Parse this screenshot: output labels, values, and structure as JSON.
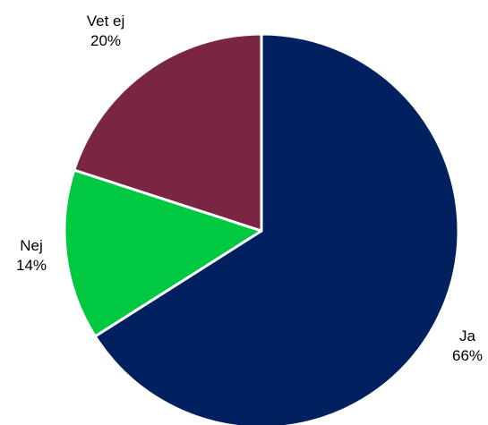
{
  "chart_data": {
    "type": "pie",
    "start_angle_deg": 0,
    "direction": "clockwise",
    "slices": [
      {
        "label": "Ja",
        "value": 66,
        "value_label": "66%",
        "color": "#002060"
      },
      {
        "label": "Nej",
        "value": 14,
        "value_label": "14%",
        "color": "#00c840"
      },
      {
        "label": "Vet ej",
        "value": 20,
        "value_label": "20%",
        "color": "#7b2545"
      }
    ],
    "legend": "none"
  }
}
